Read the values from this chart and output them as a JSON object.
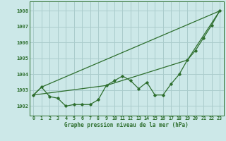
{
  "title": "Graphe pression niveau de la mer (hPa)",
  "background_color": "#cce8e8",
  "grid_color": "#aacccc",
  "line_color": "#2d6e2d",
  "xlim": [
    -0.5,
    23.5
  ],
  "ylim": [
    1001.4,
    1008.6
  ],
  "yticks": [
    1002,
    1003,
    1004,
    1005,
    1006,
    1007,
    1008
  ],
  "xticks": [
    0,
    1,
    2,
    3,
    4,
    5,
    6,
    7,
    8,
    9,
    10,
    11,
    12,
    13,
    14,
    15,
    16,
    17,
    18,
    19,
    20,
    21,
    22,
    23
  ],
  "series1": [
    1002.7,
    1003.2,
    1002.6,
    1002.5,
    1002.0,
    1002.1,
    1002.1,
    1002.1,
    1002.4,
    1003.3,
    1003.6,
    1003.9,
    1003.6,
    1003.1,
    1003.5,
    1002.7,
    1002.7,
    1003.4,
    1004.0,
    1004.9,
    1005.5,
    1006.3,
    1007.1,
    1008.0
  ],
  "series2_x": [
    0,
    1,
    23
  ],
  "series2_y": [
    1002.7,
    1003.2,
    1008.0
  ],
  "series3_x": [
    0,
    9,
    19,
    23
  ],
  "series3_y": [
    1002.7,
    1003.3,
    1004.9,
    1008.0
  ],
  "title_fontsize": 5.5,
  "tick_fontsize": 4.8
}
